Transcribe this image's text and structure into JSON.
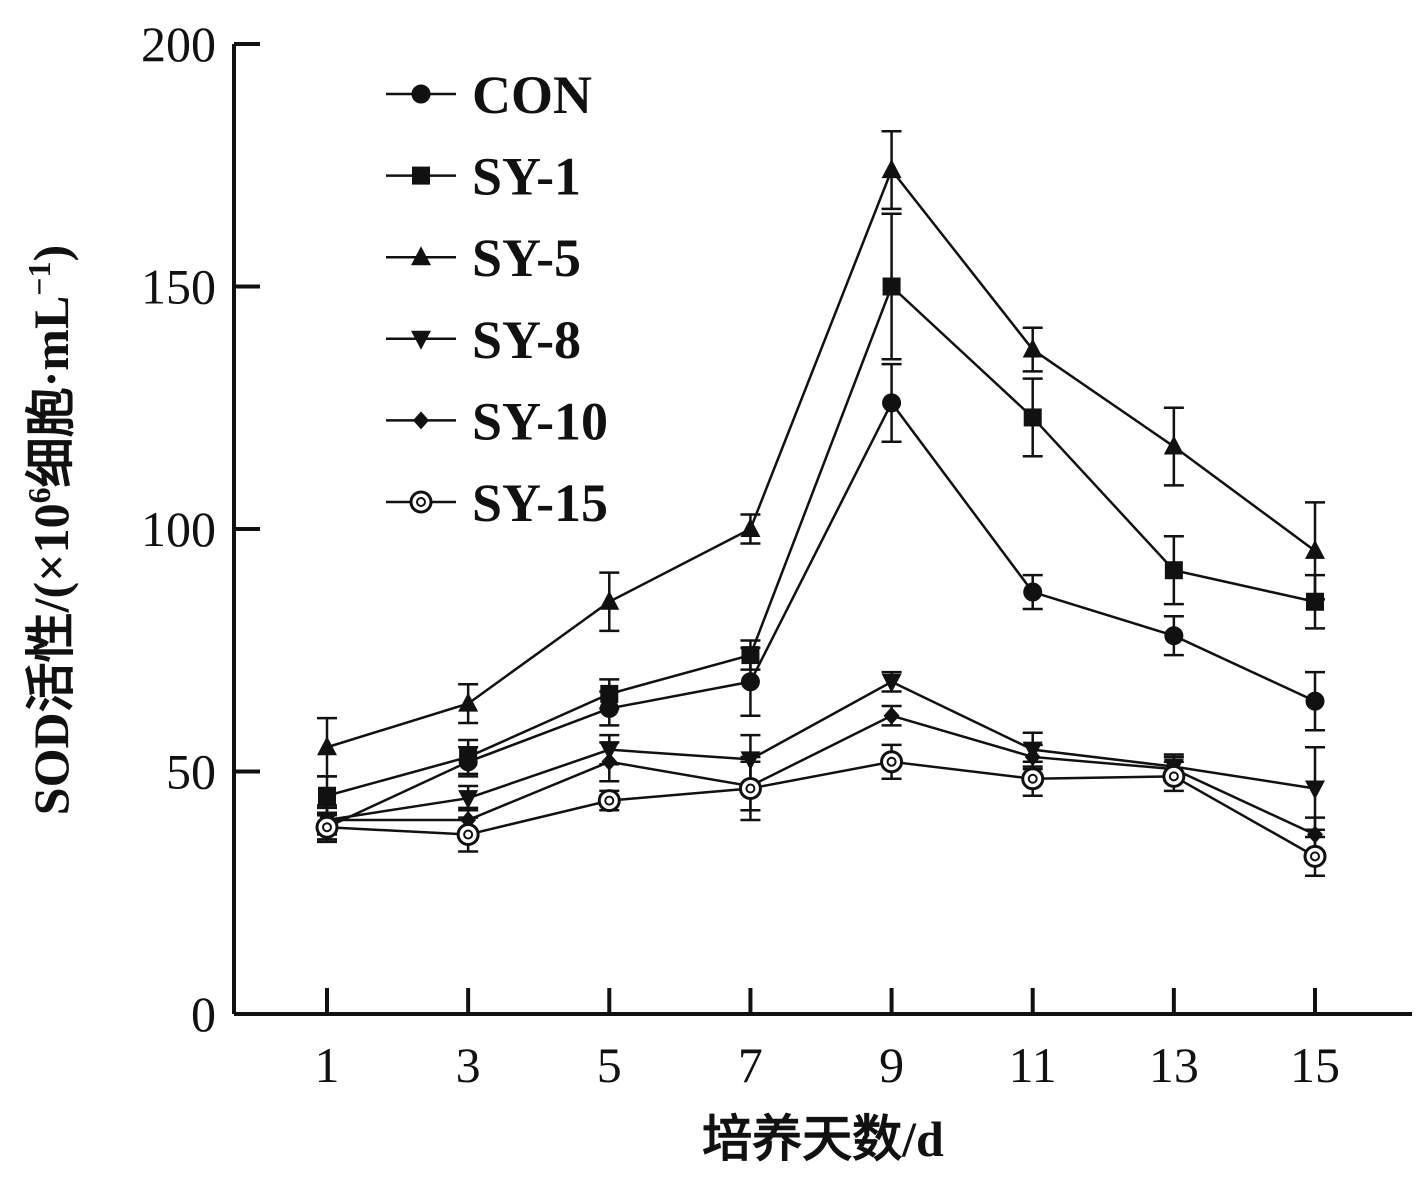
{
  "chart_data": {
    "type": "line",
    "title": "",
    "xlabel": "培养天数/d",
    "ylabel": "SOD活性/(×10⁶细胞·mL⁻¹)",
    "ylabel_main": "SOD活性/(×10",
    "ylabel_sup": "6",
    "ylabel_mid": "细胞·mL",
    "ylabel_sup2": "−1",
    "ylabel_end": ")",
    "x": [
      1,
      3,
      5,
      7,
      9,
      11,
      13,
      15
    ],
    "x_tick_labels": [
      "1",
      "3",
      "5",
      "7",
      "9",
      "11",
      "13",
      "15"
    ],
    "ylim": [
      0,
      200
    ],
    "y_ticks": [
      0,
      50,
      100,
      150,
      200
    ],
    "y_tick_labels": [
      "0",
      "50",
      "100",
      "150",
      "200"
    ],
    "grid": false,
    "legend_position": "top-left",
    "series": [
      {
        "name": "CON",
        "marker": "circle-filled",
        "values": [
          38.5,
          52,
          63,
          68.5,
          126,
          87,
          78,
          64.5
        ],
        "errors": [
          3,
          3,
          3.5,
          7,
          8,
          3.5,
          4,
          6
        ]
      },
      {
        "name": "SY-1",
        "marker": "square-filled",
        "values": [
          45,
          53,
          66,
          74,
          150,
          123,
          91.5,
          85
        ],
        "errors": [
          4,
          3.5,
          3,
          3,
          15,
          8,
          7,
          5.5
        ]
      },
      {
        "name": "SY-5",
        "marker": "triangle-up-filled",
        "values": [
          55,
          64,
          85,
          100,
          174,
          137,
          117,
          95.5
        ],
        "errors": [
          6,
          4,
          6,
          3,
          8,
          4.5,
          8,
          10
        ]
      },
      {
        "name": "SY-8",
        "marker": "triangle-down-filled",
        "values": [
          40,
          44.5,
          54.5,
          52.5,
          68.5,
          54.5,
          51,
          46.5
        ],
        "errors": [
          3,
          2.5,
          3,
          5,
          2,
          3.5,
          2.5,
          8.5
        ]
      },
      {
        "name": "SY-10",
        "marker": "diamond-filled",
        "values": [
          40,
          40,
          52,
          47,
          61.5,
          53,
          50.5,
          37
        ],
        "errors": [
          2.5,
          2.5,
          4,
          5,
          2,
          2.5,
          2.5,
          3.5
        ]
      },
      {
        "name": "SY-15",
        "marker": "circle-open",
        "values": [
          38.5,
          37,
          44,
          46.5,
          52,
          48.5,
          49,
          32.5
        ],
        "errors": [
          2.5,
          3.5,
          2,
          6.5,
          3.5,
          3.5,
          3,
          4
        ]
      }
    ]
  }
}
